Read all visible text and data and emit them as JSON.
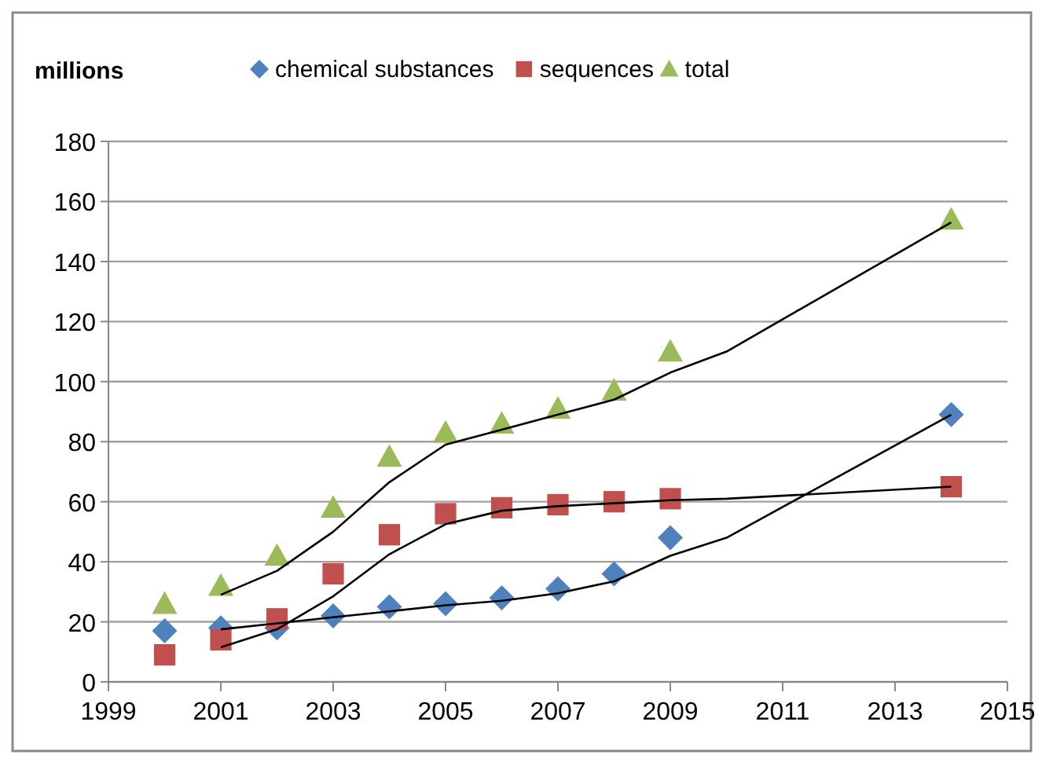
{
  "chart_data": {
    "type": "scatter",
    "ylabel": "millions",
    "xlim": [
      1999,
      2015
    ],
    "xticks": [
      1999,
      2001,
      2003,
      2005,
      2007,
      2009,
      2011,
      2013,
      2015
    ],
    "ylim": [
      0,
      180
    ],
    "yticks": [
      0,
      20,
      40,
      60,
      80,
      100,
      120,
      140,
      160,
      180
    ],
    "grid": "y",
    "legend": "top",
    "x": [
      2000,
      2001,
      2002,
      2003,
      2004,
      2005,
      2006,
      2007,
      2008,
      2009,
      2014
    ],
    "series": [
      {
        "name": "chemical substances",
        "color": "#4f81bd",
        "marker": "diamond",
        "values": [
          17,
          18,
          18,
          22,
          25,
          26,
          28,
          31,
          36,
          48,
          89
        ]
      },
      {
        "name": "sequences",
        "color": "#c0504d",
        "marker": "square",
        "values": [
          9,
          14,
          21,
          36,
          49,
          56,
          58,
          59,
          60,
          61,
          65
        ]
      },
      {
        "name": "total",
        "color": "#9bbb59",
        "marker": "triangle",
        "values": [
          26,
          32,
          42,
          58,
          75,
          83,
          86,
          91,
          97,
          110,
          154
        ]
      },
      {
        "type": "line",
        "color": "#000000",
        "marker": "none",
        "x": [
          2001,
          2002,
          2003,
          2004,
          2005,
          2006,
          2007,
          2008,
          2009,
          2010,
          2014
        ],
        "values": [
          17.5,
          19.5,
          21.5,
          23.5,
          25.5,
          27,
          29.5,
          33.5,
          42,
          48,
          89
        ]
      },
      {
        "type": "line",
        "color": "#000000",
        "marker": "none",
        "x": [
          2001,
          2002,
          2003,
          2004,
          2005,
          2006,
          2007,
          2008,
          2009,
          2010,
          2014
        ],
        "values": [
          11.5,
          17.5,
          28.5,
          42.5,
          52.5,
          57,
          58.5,
          59.5,
          60.5,
          61,
          65
        ]
      },
      {
        "type": "line",
        "color": "#000000",
        "marker": "none",
        "x": [
          2001,
          2002,
          2003,
          2004,
          2005,
          2006,
          2007,
          2008,
          2009,
          2010,
          2014
        ],
        "values": [
          29,
          37,
          50,
          66.5,
          79,
          84,
          89,
          94,
          103,
          110,
          153
        ]
      }
    ]
  }
}
